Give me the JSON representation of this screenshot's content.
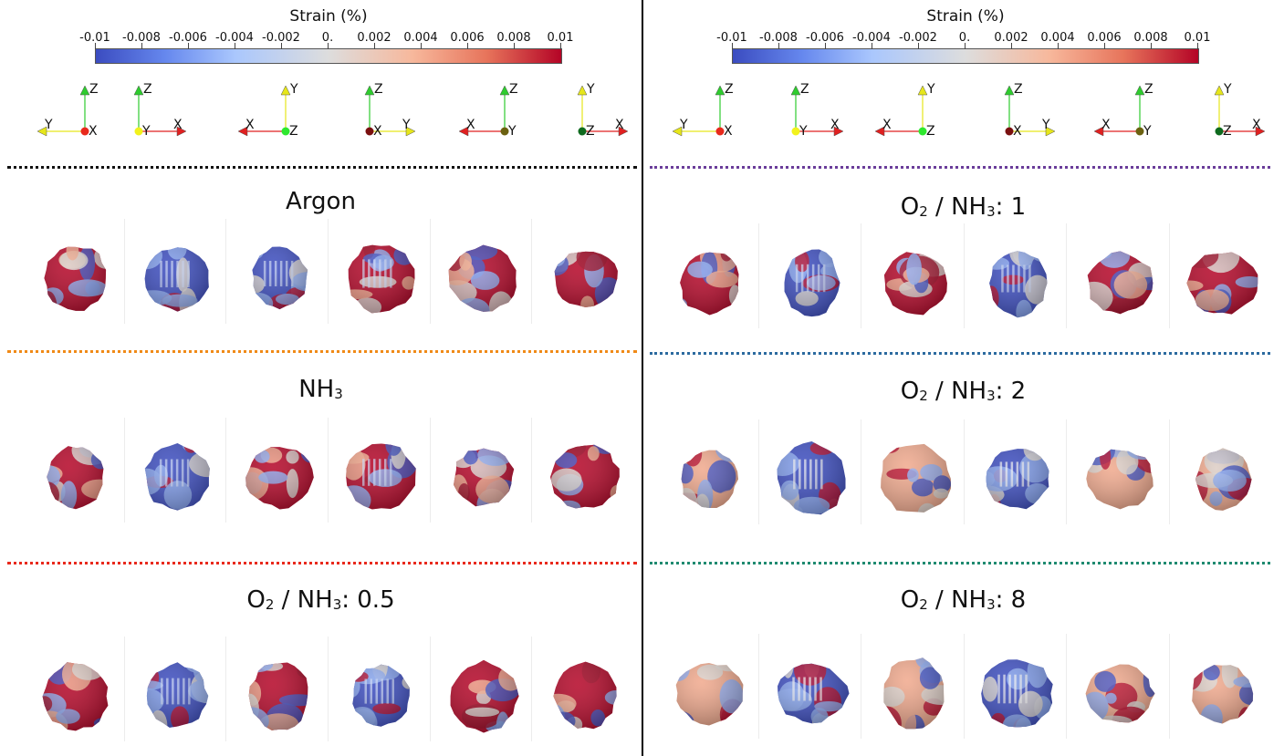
{
  "colorbar": {
    "title": "Strain (%)",
    "ticks": [
      "-0.01",
      "-0.008",
      "-0.006",
      "-0.004",
      "-0.002",
      "0.",
      "0.002",
      "0.004",
      "0.006",
      "0.008",
      "0.01"
    ],
    "colors": [
      "#3b4cc0",
      "#dddddd",
      "#b40426"
    ]
  },
  "triads": [
    {
      "labels": [
        "Z",
        "Y",
        "X"
      ],
      "origin_color": "#e8291c"
    },
    {
      "labels": [
        "Z",
        "Y",
        "X"
      ],
      "origin_color": "#f2f21c"
    },
    {
      "labels": [
        "Y",
        "X",
        "Z"
      ],
      "origin_color": "#2ee82e"
    },
    {
      "labels": [
        "Z",
        "X",
        "Y"
      ],
      "origin_color": "#7a1010"
    },
    {
      "labels": [
        "Z",
        "X",
        "Y"
      ],
      "origin_color": "#6b6110"
    },
    {
      "labels": [
        "Y",
        "Z",
        "X"
      ],
      "origin_color": "#0e6a1e"
    }
  ],
  "left": {
    "rows": [
      {
        "title_main": "Argon",
        "sep_color": "#111111"
      },
      {
        "title_main": "NH",
        "title_sub": "3",
        "sep_color": "#f08a18"
      },
      {
        "title_pre": "O",
        "title_pre_sub": "2",
        "title_main": " / NH",
        "title_sub": "3",
        "title_post": ": 0.5",
        "sep_color": "#e8291c"
      }
    ]
  },
  "right": {
    "rows": [
      {
        "title_pre": "O",
        "title_pre_sub": "2",
        "title_main": " / NH",
        "title_sub": "3",
        "title_post": ": 1",
        "sep_color": "#6a3d9a"
      },
      {
        "title_pre": "O",
        "title_pre_sub": "2",
        "title_main": " / NH",
        "title_sub": "3",
        "title_post": ": 2",
        "sep_color": "#2b6a9f"
      },
      {
        "title_pre": "O",
        "title_pre_sub": "2",
        "title_main": " / NH",
        "title_sub": "3",
        "title_post": ": 8",
        "sep_color": "#1f8a70"
      }
    ]
  }
}
